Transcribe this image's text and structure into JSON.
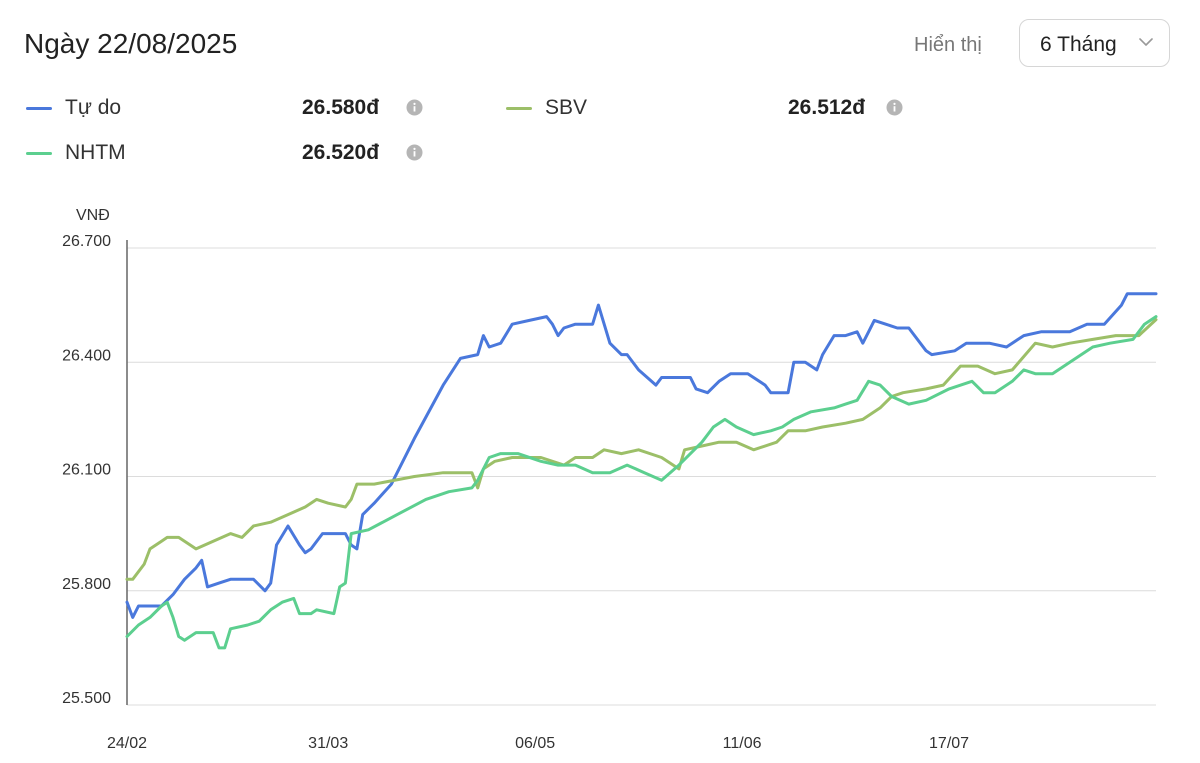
{
  "header": {
    "date_title": "Ngày 22/08/2025",
    "display_label": "Hiển thị",
    "period_value": "6 Tháng"
  },
  "legend": [
    {
      "name": "Tự do",
      "value": "26.580đ",
      "color": "#4a78dc",
      "info_icon": "info-icon"
    },
    {
      "name": "SBV",
      "value": "26.512đ",
      "color": "#9cbf68",
      "info_icon": "info-icon"
    },
    {
      "name": "NHTM",
      "value": "26.520đ",
      "color": "#5ccf8f",
      "info_icon": "info-icon"
    }
  ],
  "chart_data": {
    "type": "line",
    "unit_label": "VNĐ",
    "ylim": [
      25500,
      26700
    ],
    "y_ticks": [
      25500,
      25800,
      26100,
      26400,
      26700
    ],
    "y_tick_labels": [
      "25.500",
      "25.800",
      "26.100",
      "26.400",
      "26.700"
    ],
    "x_range": [
      "2025-02-24",
      "2025-08-22"
    ],
    "x_ticks": [
      "2025-02-24",
      "2025-03-31",
      "2025-05-06",
      "2025-06-11",
      "2025-07-17"
    ],
    "x_tick_labels": [
      "24/02",
      "31/03",
      "06/05",
      "11/06",
      "17/07"
    ],
    "grid": true,
    "series": [
      {
        "name": "Tự do",
        "color": "#4a78dc",
        "points": [
          [
            "2025-02-24",
            25770
          ],
          [
            "2025-02-25",
            25730
          ],
          [
            "2025-02-26",
            25760
          ],
          [
            "2025-02-28",
            25760
          ],
          [
            "2025-03-02",
            25760
          ],
          [
            "2025-03-04",
            25790
          ],
          [
            "2025-03-06",
            25830
          ],
          [
            "2025-03-08",
            25860
          ],
          [
            "2025-03-09",
            25880
          ],
          [
            "2025-03-10",
            25810
          ],
          [
            "2025-03-12",
            25820
          ],
          [
            "2025-03-14",
            25830
          ],
          [
            "2025-03-18",
            25830
          ],
          [
            "2025-03-20",
            25800
          ],
          [
            "2025-03-21",
            25820
          ],
          [
            "2025-03-22",
            25920
          ],
          [
            "2025-03-24",
            25970
          ],
          [
            "2025-03-26",
            25920
          ],
          [
            "2025-03-27",
            25900
          ],
          [
            "2025-03-28",
            25910
          ],
          [
            "2025-03-30",
            25950
          ],
          [
            "2025-04-01",
            25950
          ],
          [
            "2025-04-03",
            25950
          ],
          [
            "2025-04-04",
            25920
          ],
          [
            "2025-04-05",
            25910
          ],
          [
            "2025-04-06",
            26000
          ],
          [
            "2025-04-08",
            26030
          ],
          [
            "2025-04-11",
            26080
          ],
          [
            "2025-04-15",
            26200
          ],
          [
            "2025-04-20",
            26340
          ],
          [
            "2025-04-23",
            26410
          ],
          [
            "2025-04-26",
            26420
          ],
          [
            "2025-04-27",
            26470
          ],
          [
            "2025-04-28",
            26440
          ],
          [
            "2025-04-30",
            26450
          ],
          [
            "2025-05-02",
            26500
          ],
          [
            "2025-05-05",
            26510
          ],
          [
            "2025-05-08",
            26520
          ],
          [
            "2025-05-09",
            26500
          ],
          [
            "2025-05-10",
            26470
          ],
          [
            "2025-05-11",
            26490
          ],
          [
            "2025-05-13",
            26500
          ],
          [
            "2025-05-16",
            26500
          ],
          [
            "2025-05-17",
            26550
          ],
          [
            "2025-05-19",
            26450
          ],
          [
            "2025-05-21",
            26420
          ],
          [
            "2025-05-22",
            26420
          ],
          [
            "2025-05-24",
            26380
          ],
          [
            "2025-05-27",
            26340
          ],
          [
            "2025-05-28",
            26360
          ],
          [
            "2025-05-31",
            26360
          ],
          [
            "2025-06-02",
            26360
          ],
          [
            "2025-06-03",
            26330
          ],
          [
            "2025-06-05",
            26320
          ],
          [
            "2025-06-07",
            26350
          ],
          [
            "2025-06-09",
            26370
          ],
          [
            "2025-06-12",
            26370
          ],
          [
            "2025-06-15",
            26340
          ],
          [
            "2025-06-16",
            26320
          ],
          [
            "2025-06-19",
            26320
          ],
          [
            "2025-06-20",
            26400
          ],
          [
            "2025-06-22",
            26400
          ],
          [
            "2025-06-24",
            26380
          ],
          [
            "2025-06-25",
            26420
          ],
          [
            "2025-06-27",
            26470
          ],
          [
            "2025-06-29",
            26470
          ],
          [
            "2025-07-01",
            26480
          ],
          [
            "2025-07-02",
            26450
          ],
          [
            "2025-07-03",
            26480
          ],
          [
            "2025-07-04",
            26510
          ],
          [
            "2025-07-06",
            26500
          ],
          [
            "2025-07-08",
            26490
          ],
          [
            "2025-07-10",
            26490
          ],
          [
            "2025-07-13",
            26430
          ],
          [
            "2025-07-14",
            26420
          ],
          [
            "2025-07-18",
            26430
          ],
          [
            "2025-07-20",
            26450
          ],
          [
            "2025-07-24",
            26450
          ],
          [
            "2025-07-27",
            26440
          ],
          [
            "2025-07-29",
            26460
          ],
          [
            "2025-07-30",
            26470
          ],
          [
            "2025-08-02",
            26480
          ],
          [
            "2025-08-07",
            26480
          ],
          [
            "2025-08-10",
            26500
          ],
          [
            "2025-08-13",
            26500
          ],
          [
            "2025-08-16",
            26550
          ],
          [
            "2025-08-17",
            26580
          ],
          [
            "2025-08-22",
            26580
          ]
        ]
      },
      {
        "name": "SBV",
        "color": "#9cbf68",
        "points": [
          [
            "2025-02-24",
            25830
          ],
          [
            "2025-02-25",
            25830
          ],
          [
            "2025-02-27",
            25870
          ],
          [
            "2025-02-28",
            25910
          ],
          [
            "2025-03-02",
            25930
          ],
          [
            "2025-03-03",
            25940
          ],
          [
            "2025-03-05",
            25940
          ],
          [
            "2025-03-07",
            25920
          ],
          [
            "2025-03-08",
            25910
          ],
          [
            "2025-03-11",
            25930
          ],
          [
            "2025-03-14",
            25950
          ],
          [
            "2025-03-16",
            25940
          ],
          [
            "2025-03-18",
            25970
          ],
          [
            "2025-03-21",
            25980
          ],
          [
            "2025-03-24",
            26000
          ],
          [
            "2025-03-27",
            26020
          ],
          [
            "2025-03-29",
            26040
          ],
          [
            "2025-03-31",
            26030
          ],
          [
            "2025-04-03",
            26020
          ],
          [
            "2025-04-04",
            26040
          ],
          [
            "2025-04-05",
            26080
          ],
          [
            "2025-04-08",
            26080
          ],
          [
            "2025-04-15",
            26100
          ],
          [
            "2025-04-20",
            26110
          ],
          [
            "2025-04-25",
            26110
          ],
          [
            "2025-04-26",
            26070
          ],
          [
            "2025-04-27",
            26120
          ],
          [
            "2025-04-29",
            26140
          ],
          [
            "2025-05-02",
            26150
          ],
          [
            "2025-05-07",
            26150
          ],
          [
            "2025-05-11",
            26130
          ],
          [
            "2025-05-13",
            26150
          ],
          [
            "2025-05-16",
            26150
          ],
          [
            "2025-05-18",
            26170
          ],
          [
            "2025-05-21",
            26160
          ],
          [
            "2025-05-24",
            26170
          ],
          [
            "2025-05-28",
            26150
          ],
          [
            "2025-05-31",
            26120
          ],
          [
            "2025-06-01",
            26170
          ],
          [
            "2025-06-04",
            26180
          ],
          [
            "2025-06-07",
            26190
          ],
          [
            "2025-06-10",
            26190
          ],
          [
            "2025-06-13",
            26170
          ],
          [
            "2025-06-17",
            26190
          ],
          [
            "2025-06-19",
            26220
          ],
          [
            "2025-06-22",
            26220
          ],
          [
            "2025-06-25",
            26230
          ],
          [
            "2025-06-29",
            26240
          ],
          [
            "2025-07-02",
            26250
          ],
          [
            "2025-07-05",
            26280
          ],
          [
            "2025-07-07",
            26310
          ],
          [
            "2025-07-09",
            26320
          ],
          [
            "2025-07-13",
            26330
          ],
          [
            "2025-07-16",
            26340
          ],
          [
            "2025-07-19",
            26390
          ],
          [
            "2025-07-22",
            26390
          ],
          [
            "2025-07-25",
            26370
          ],
          [
            "2025-07-28",
            26380
          ],
          [
            "2025-08-01",
            26450
          ],
          [
            "2025-08-04",
            26440
          ],
          [
            "2025-08-07",
            26450
          ],
          [
            "2025-08-11",
            26460
          ],
          [
            "2025-08-15",
            26470
          ],
          [
            "2025-08-19",
            26470
          ],
          [
            "2025-08-22",
            26512
          ]
        ]
      },
      {
        "name": "NHTM",
        "color": "#5ccf8f",
        "points": [
          [
            "2025-02-24",
            25680
          ],
          [
            "2025-02-26",
            25710
          ],
          [
            "2025-02-28",
            25730
          ],
          [
            "2025-03-02",
            25760
          ],
          [
            "2025-03-03",
            25770
          ],
          [
            "2025-03-04",
            25730
          ],
          [
            "2025-03-05",
            25680
          ],
          [
            "2025-03-06",
            25670
          ],
          [
            "2025-03-08",
            25690
          ],
          [
            "2025-03-11",
            25690
          ],
          [
            "2025-03-12",
            25650
          ],
          [
            "2025-03-13",
            25650
          ],
          [
            "2025-03-14",
            25700
          ],
          [
            "2025-03-17",
            25710
          ],
          [
            "2025-03-19",
            25720
          ],
          [
            "2025-03-21",
            25750
          ],
          [
            "2025-03-23",
            25770
          ],
          [
            "2025-03-25",
            25780
          ],
          [
            "2025-03-26",
            25740
          ],
          [
            "2025-03-28",
            25740
          ],
          [
            "2025-03-29",
            25750
          ],
          [
            "2025-04-01",
            25740
          ],
          [
            "2025-04-02",
            25810
          ],
          [
            "2025-04-03",
            25820
          ],
          [
            "2025-04-04",
            25950
          ],
          [
            "2025-04-07",
            25960
          ],
          [
            "2025-04-12",
            26000
          ],
          [
            "2025-04-17",
            26040
          ],
          [
            "2025-04-21",
            26060
          ],
          [
            "2025-04-25",
            26070
          ],
          [
            "2025-04-26",
            26090
          ],
          [
            "2025-04-28",
            26150
          ],
          [
            "2025-04-30",
            26160
          ],
          [
            "2025-05-03",
            26160
          ],
          [
            "2025-05-07",
            26140
          ],
          [
            "2025-05-10",
            26130
          ],
          [
            "2025-05-13",
            26130
          ],
          [
            "2025-05-16",
            26110
          ],
          [
            "2025-05-19",
            26110
          ],
          [
            "2025-05-22",
            26130
          ],
          [
            "2025-05-25",
            26110
          ],
          [
            "2025-05-28",
            26090
          ],
          [
            "2025-05-31",
            26130
          ],
          [
            "2025-06-04",
            26190
          ],
          [
            "2025-06-06",
            26230
          ],
          [
            "2025-06-08",
            26250
          ],
          [
            "2025-06-10",
            26230
          ],
          [
            "2025-06-13",
            26210
          ],
          [
            "2025-06-16",
            26220
          ],
          [
            "2025-06-18",
            26230
          ],
          [
            "2025-06-20",
            26250
          ],
          [
            "2025-06-23",
            26270
          ],
          [
            "2025-06-27",
            26280
          ],
          [
            "2025-06-29",
            26290
          ],
          [
            "2025-07-01",
            26300
          ],
          [
            "2025-07-03",
            26350
          ],
          [
            "2025-07-05",
            26340
          ],
          [
            "2025-07-07",
            26310
          ],
          [
            "2025-07-10",
            26290
          ],
          [
            "2025-07-13",
            26300
          ],
          [
            "2025-07-17",
            26330
          ],
          [
            "2025-07-21",
            26350
          ],
          [
            "2025-07-23",
            26320
          ],
          [
            "2025-07-25",
            26320
          ],
          [
            "2025-07-28",
            26350
          ],
          [
            "2025-07-30",
            26380
          ],
          [
            "2025-08-01",
            26370
          ],
          [
            "2025-08-04",
            26370
          ],
          [
            "2025-08-07",
            26400
          ],
          [
            "2025-08-11",
            26440
          ],
          [
            "2025-08-14",
            26450
          ],
          [
            "2025-08-18",
            26460
          ],
          [
            "2025-08-20",
            26500
          ],
          [
            "2025-08-21",
            26510
          ],
          [
            "2025-08-22",
            26520
          ]
        ]
      }
    ]
  }
}
